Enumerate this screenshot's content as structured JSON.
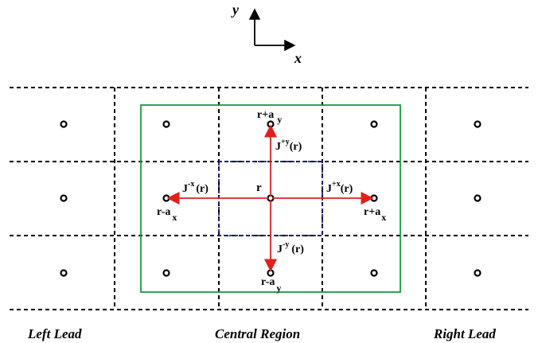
{
  "axes": {
    "y_label": "y",
    "x_label": "x"
  },
  "sites": {
    "center": "r",
    "up": {
      "main": "r+a",
      "sub": "y"
    },
    "down": {
      "main": "r-a",
      "sub": "y"
    },
    "left": {
      "main": "r-a",
      "sub": "x"
    },
    "right": {
      "main": "r+a",
      "sub": "x"
    }
  },
  "currents": {
    "up": {
      "main": "J",
      "sup": "+y",
      "arg": "(r)"
    },
    "down": {
      "main": "J",
      "sup": "-y",
      "arg": "(r)"
    },
    "left": {
      "main": "J",
      "sup": "-x",
      "arg": "(r)"
    },
    "right": {
      "main": "J",
      "sup": "+x",
      "arg": "(r)"
    }
  },
  "regions": {
    "left": "Left Lead",
    "center": "Central Region",
    "right": "Right Lead"
  },
  "colors": {
    "grid": "#000000",
    "central_box": "#1a9a3a",
    "unit_cell": "#1a1a8a",
    "current_arrow": "#e02020"
  }
}
